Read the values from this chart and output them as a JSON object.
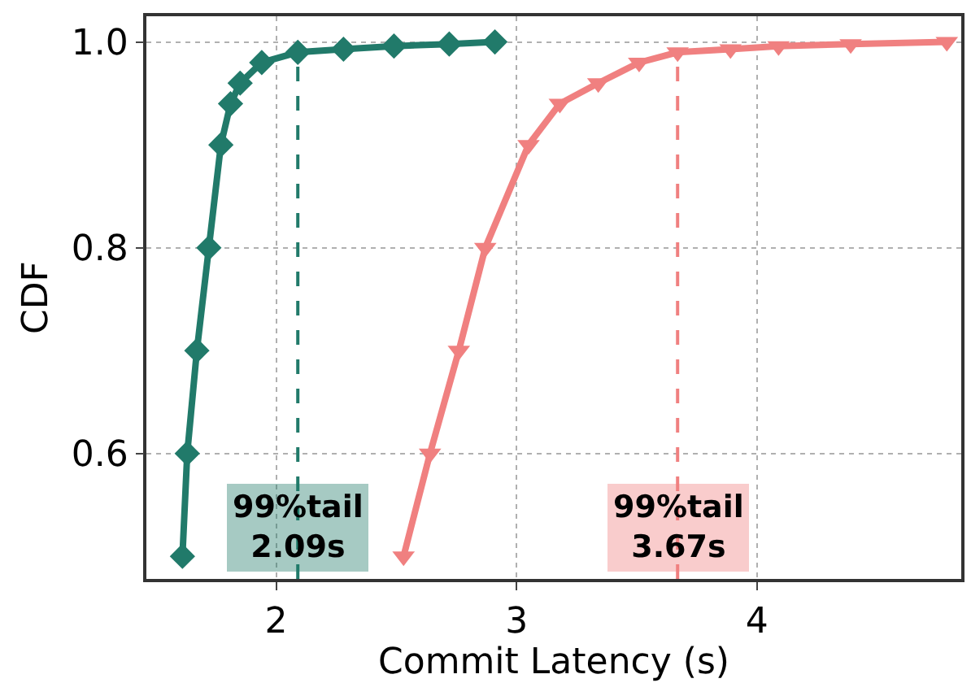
{
  "chart_data": {
    "type": "line",
    "xlabel": "Commit Latency (s)",
    "ylabel": "CDF",
    "xlim": [
      1.46,
      4.85
    ],
    "ylim": [
      0.478,
      1.025
    ],
    "xticks": [
      2,
      3,
      4
    ],
    "yticks": [
      0.6,
      0.8,
      {
        "value": 1,
        "label": "1.0"
      }
    ],
    "grid": true,
    "line_style": "solid",
    "series": [
      {
        "color": "#217a6a",
        "marker": "diamond",
        "x": [
          1.61,
          1.63,
          1.67,
          1.72,
          1.77,
          1.81,
          1.85,
          1.94,
          2.09,
          2.28,
          2.49,
          2.72,
          2.91
        ],
        "values": [
          0.5,
          0.6,
          0.7,
          0.8,
          0.9,
          0.94,
          0.96,
          0.98,
          0.99,
          0.993,
          0.996,
          0.998,
          1.0
        ]
      },
      {
        "color": "#f08080",
        "marker": "triangle",
        "x": [
          2.53,
          2.64,
          2.76,
          2.87,
          3.05,
          3.18,
          3.34,
          3.51,
          3.67,
          3.89,
          4.09,
          4.39,
          4.79
        ],
        "values": [
          0.5,
          0.6,
          0.7,
          0.8,
          0.9,
          0.94,
          0.96,
          0.98,
          0.99,
          0.993,
          0.996,
          0.998,
          1.0
        ]
      }
    ],
    "ref_lines": [
      {
        "axis": "x",
        "value": 2.09,
        "label": "99%tail\n2.09s",
        "color": "#217a6a",
        "line_style": "dashed"
      },
      {
        "axis": "x",
        "value": 3.67,
        "label": "99%tail\n3.67s",
        "color": "#f08080",
        "line_style": "dashed"
      }
    ]
  }
}
